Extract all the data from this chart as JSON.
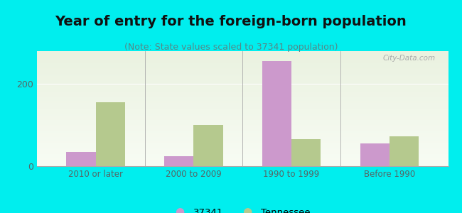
{
  "title": "Year of entry for the foreign-born population",
  "subtitle": "(Note: State values scaled to 37341 population)",
  "categories": [
    "2010 or later",
    "2000 to 2009",
    "1990 to 1999",
    "Before 1990"
  ],
  "values_37341": [
    35,
    25,
    255,
    55
  ],
  "values_tennessee": [
    155,
    100,
    65,
    72
  ],
  "color_37341": "#cc99cc",
  "color_tennessee": "#b5c98e",
  "background_outer": "#00eeee",
  "ylim": [
    0,
    280
  ],
  "yticks": [
    0,
    200
  ],
  "legend_label_1": "37341",
  "legend_label_2": "Tennessee",
  "bar_width": 0.3,
  "title_fontsize": 14,
  "subtitle_fontsize": 9,
  "watermark": "City-Data.com"
}
